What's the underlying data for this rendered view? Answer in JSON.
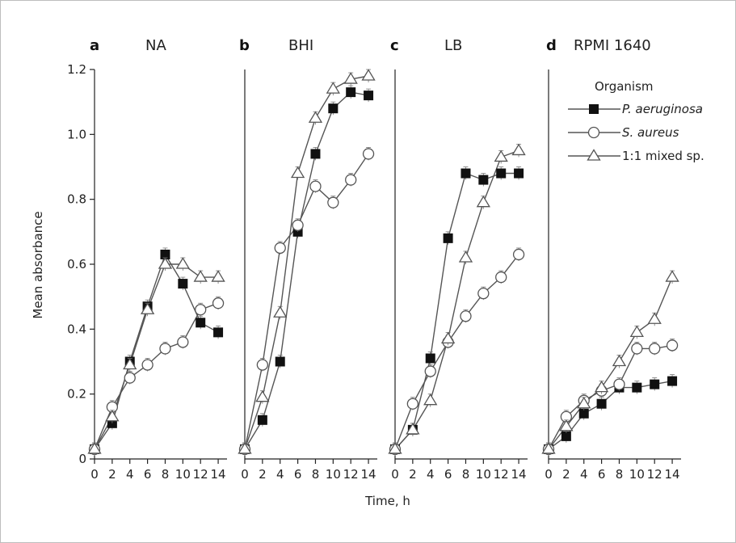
{
  "chart_data": {
    "type": "line",
    "xlabel": "Time, h",
    "ylabel": "Mean absorbance",
    "ylim": [
      0,
      1.2
    ],
    "xlim": [
      0,
      15
    ],
    "yticks": [
      "0",
      "0.2",
      "0.4",
      "0.6",
      "0.8",
      "1.0",
      "1.2"
    ],
    "xtick_values": [
      0,
      2,
      4,
      6,
      8,
      10,
      12,
      14
    ],
    "xticks": [
      "0",
      "2",
      "4",
      "6",
      "8",
      "10",
      "12",
      "14"
    ],
    "x": [
      0,
      2,
      4,
      6,
      8,
      10,
      12,
      14
    ],
    "legend": {
      "title": "Organism",
      "placement": "top-right of panel d",
      "entries": [
        {
          "key": "pa",
          "label": "P. aeruginosa",
          "italic": true,
          "marker": "filled-square"
        },
        {
          "key": "sa",
          "label": "S. aureus",
          "italic": true,
          "marker": "open-circle"
        },
        {
          "key": "mix",
          "label": "1:1 mixed sp.",
          "italic": false,
          "marker": "open-triangle"
        }
      ]
    },
    "panels": [
      {
        "letter": "a",
        "title": "NA",
        "series": [
          {
            "key": "pa",
            "values": [
              0.03,
              0.11,
              0.3,
              0.47,
              0.63,
              0.54,
              0.42,
              0.39
            ]
          },
          {
            "key": "sa",
            "values": [
              0.03,
              0.16,
              0.25,
              0.29,
              0.34,
              0.36,
              0.46,
              0.48
            ]
          },
          {
            "key": "mix",
            "values": [
              0.03,
              0.13,
              0.29,
              0.46,
              0.6,
              0.6,
              0.56,
              0.56
            ]
          }
        ]
      },
      {
        "letter": "b",
        "title": "BHI",
        "series": [
          {
            "key": "pa",
            "values": [
              0.03,
              0.12,
              0.3,
              0.7,
              0.94,
              1.08,
              1.13,
              1.12
            ]
          },
          {
            "key": "sa",
            "values": [
              0.03,
              0.29,
              0.65,
              0.72,
              0.84,
              0.79,
              0.86,
              0.94
            ]
          },
          {
            "key": "mix",
            "values": [
              0.03,
              0.19,
              0.45,
              0.88,
              1.05,
              1.14,
              1.17,
              1.18
            ]
          }
        ]
      },
      {
        "letter": "c",
        "title": "LB",
        "series": [
          {
            "key": "pa",
            "values": [
              0.03,
              0.09,
              0.31,
              0.68,
              0.88,
              0.86,
              0.88,
              0.88
            ]
          },
          {
            "key": "sa",
            "values": [
              0.03,
              0.17,
              0.27,
              0.36,
              0.44,
              0.51,
              0.56,
              0.63
            ]
          },
          {
            "key": "mix",
            "values": [
              0.03,
              0.09,
              0.18,
              0.37,
              0.62,
              0.79,
              0.93,
              0.95
            ]
          }
        ]
      },
      {
        "letter": "d",
        "title": "RPMI 1640",
        "series": [
          {
            "key": "pa",
            "values": [
              0.03,
              0.07,
              0.14,
              0.17,
              0.22,
              0.22,
              0.23,
              0.24
            ]
          },
          {
            "key": "sa",
            "values": [
              0.03,
              0.13,
              0.18,
              0.21,
              0.23,
              0.34,
              0.34,
              0.35
            ]
          },
          {
            "key": "mix",
            "values": [
              0.03,
              0.1,
              0.17,
              0.22,
              0.3,
              0.39,
              0.43,
              0.56
            ]
          }
        ]
      }
    ]
  },
  "colors": {
    "line": "#555555",
    "filled_marker": "#111111",
    "open_marker_fill": "#ffffff",
    "axis": "#222222"
  }
}
